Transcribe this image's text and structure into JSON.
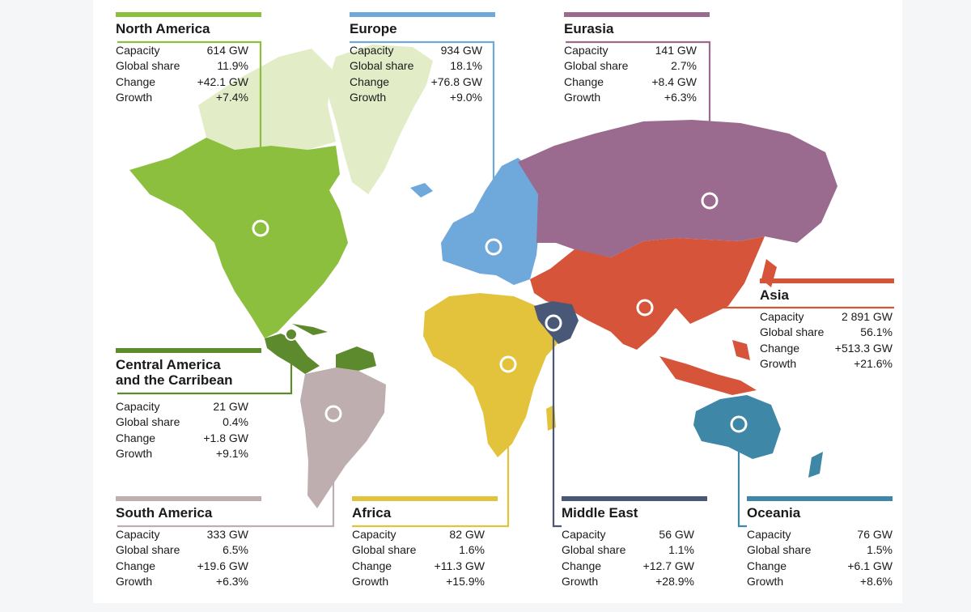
{
  "labels": {
    "capacity": "Capacity",
    "share": "Global share",
    "change": "Change",
    "growth": "Growth"
  },
  "regions": {
    "north_america": {
      "name": "North America",
      "capacity": "614 GW",
      "share": "11.9%",
      "change": "+42.1 GW",
      "growth": "+7.4%",
      "color": "#8dbf3e"
    },
    "europe": {
      "name": "Europe",
      "capacity": "934 GW",
      "share": "18.1%",
      "change": "+76.8 GW",
      "growth": "+9.0%",
      "color": "#6fa9dc"
    },
    "eurasia": {
      "name": "Eurasia",
      "capacity": "141 GW",
      "share": "2.7%",
      "change": "+8.4 GW",
      "growth": "+6.3%",
      "color": "#9b6a8f"
    },
    "asia": {
      "name": "Asia",
      "capacity": "2 891 GW",
      "share": "56.1%",
      "change": "+513.3 GW",
      "growth": "+21.6%",
      "color": "#d5543a"
    },
    "central_america": {
      "name_line1": "Central America",
      "name_line2": "and the Carribean",
      "capacity": "21 GW",
      "share": "0.4%",
      "change": "+1.8 GW",
      "growth": "+9.1%",
      "color": "#5e8a2e"
    },
    "south_america": {
      "name": "South America",
      "capacity": "333 GW",
      "share": "6.5%",
      "change": "+19.6 GW",
      "growth": "+6.3%",
      "color": "#bfaeb0"
    },
    "africa": {
      "name": "Africa",
      "capacity": "82 GW",
      "share": "1.6%",
      "change": "+11.3 GW",
      "growth": "+15.9%",
      "color": "#e3c33b"
    },
    "middle_east": {
      "name": "Middle East",
      "capacity": "56 GW",
      "share": "1.1%",
      "change": "+12.7 GW",
      "growth": "+28.9%",
      "color": "#4a5878"
    },
    "oceania": {
      "name": "Oceania",
      "capacity": "76 GW",
      "share": "1.5%",
      "change": "+6.1 GW",
      "growth": "+8.6%",
      "color": "#3f87a6"
    }
  }
}
